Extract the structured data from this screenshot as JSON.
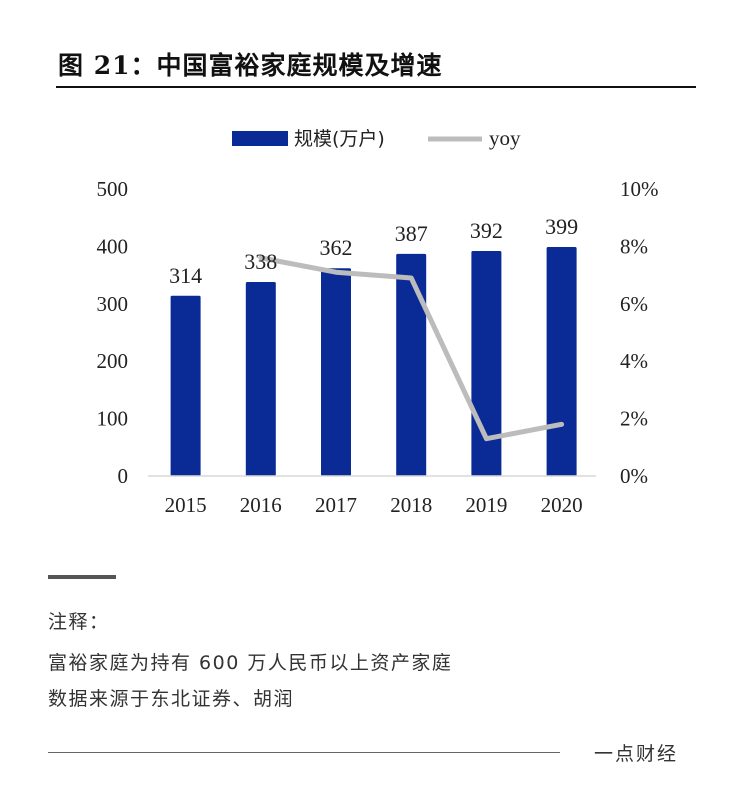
{
  "figure_title": "图 21：中国富裕家庭规模及增速",
  "chart_data": {
    "type": "bar",
    "categories": [
      "2015",
      "2016",
      "2017",
      "2018",
      "2019",
      "2020"
    ],
    "series": [
      {
        "name": "规模(万户)",
        "type": "bar",
        "axis": "left",
        "values": [
          314,
          338,
          362,
          387,
          392,
          399
        ],
        "color": "#0a2a96"
      },
      {
        "name": "yoy",
        "type": "line",
        "axis": "right",
        "values": [
          null,
          7.6,
          7.1,
          6.9,
          1.3,
          1.8
        ],
        "color": "#bcbcbc"
      }
    ],
    "data_labels": [
      "314",
      "338",
      "362",
      "387",
      "392",
      "399"
    ],
    "ylim_left": [
      0,
      500
    ],
    "yticks_left": [
      "0",
      "100",
      "200",
      "300",
      "400",
      "500"
    ],
    "ylim_right": [
      0,
      10
    ],
    "yticks_right": [
      "0%",
      "2%",
      "4%",
      "6%",
      "8%",
      "10%"
    ],
    "legend_position": "top-center",
    "grid": false
  },
  "notes": {
    "heading": "注释：",
    "line1": "富裕家庭为持有 600 万人民币以上资产家庭",
    "line2": "数据来源于东北证券、胡润"
  },
  "footer": {
    "brand": "一点财经"
  }
}
